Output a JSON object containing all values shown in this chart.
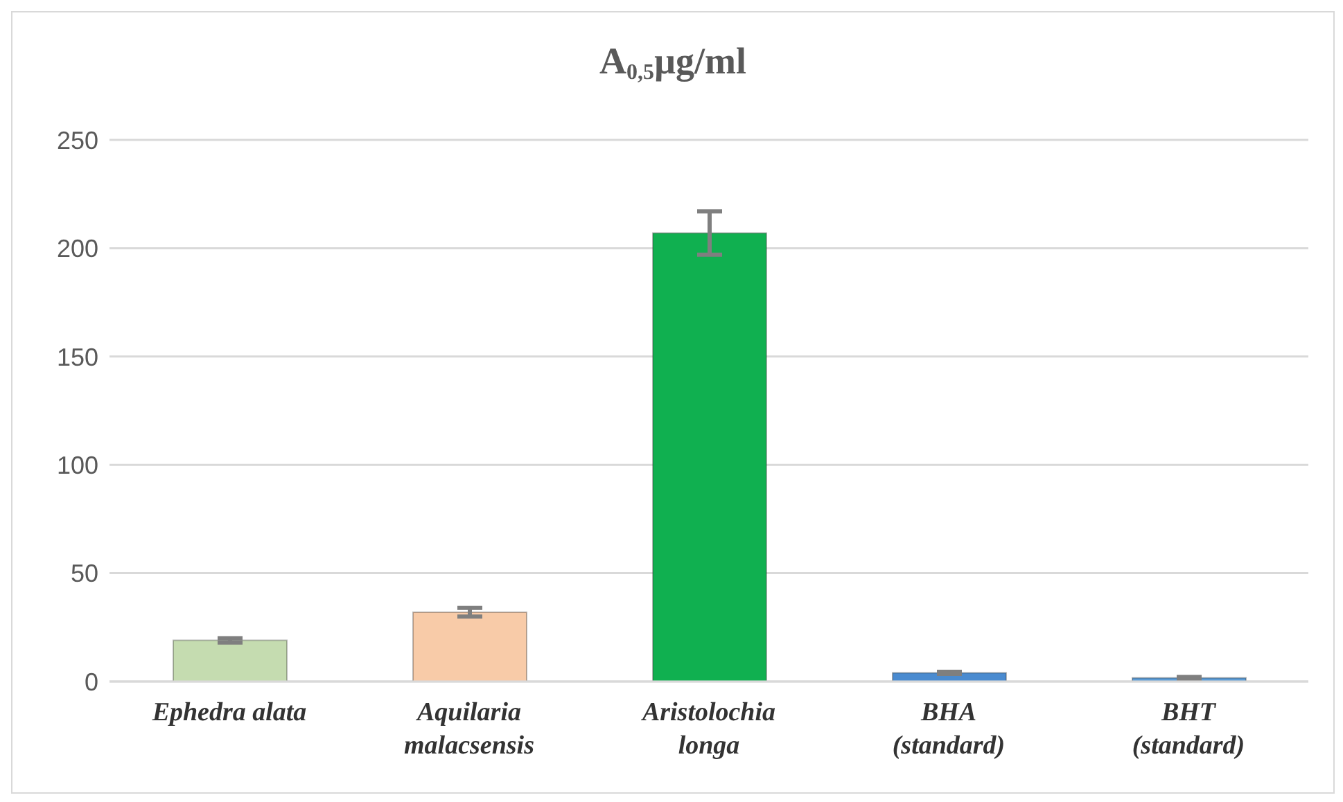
{
  "chart_data": {
    "type": "bar",
    "title": "A$_{0,5}$µg/ml",
    "categories": [
      "Ephedra alata",
      "Aquilaria malacsensis",
      "Aristolochia longa",
      "BHA (standard)",
      "BHT (standard)"
    ],
    "values": [
      19,
      32,
      207,
      4,
      1.7
    ],
    "errors": [
      1,
      2,
      10,
      0.5,
      0.4
    ],
    "colors": [
      "#c5dcb0",
      "#f8cba8",
      "#10b050",
      "#4a8bd0",
      "#5b9bd5"
    ],
    "ylim": [
      0,
      250
    ],
    "yticks": [
      0,
      50,
      100,
      150,
      200,
      250
    ],
    "grid": "y",
    "legend": false
  }
}
